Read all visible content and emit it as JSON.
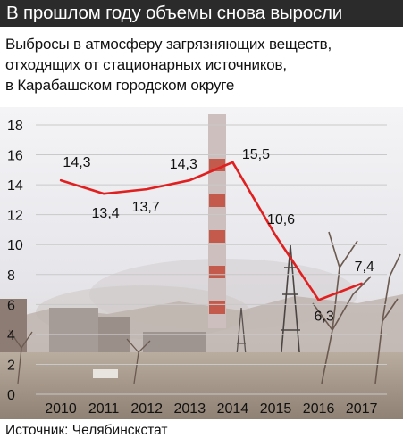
{
  "header": {
    "title": "В прошлом году объемы снова выросли",
    "subtitle_lines": [
      "Выбросы в атмосферу загрязняющих веществ,",
      "отходящих от стационарных источников,",
      "в Карабашском городском округе"
    ]
  },
  "footer": {
    "source": "Источник: Челябинскстат"
  },
  "colors": {
    "header_bg": "#2b2b2b",
    "line": "#e02020",
    "grid": "#c9c9c9"
  },
  "chart_data": {
    "type": "line",
    "title": "Выбросы в атмосферу загрязняющих веществ, отходящих от стационарных источников, в Карабашском городском округе",
    "categories": [
      "2010",
      "2011",
      "2012",
      "2013",
      "2014",
      "2015",
      "2016",
      "2017"
    ],
    "series": [
      {
        "values": [
          14.3,
          13.4,
          13.7,
          14.3,
          15.5,
          10.6,
          6.3,
          7.4
        ]
      }
    ],
    "data_labels": [
      "14,3",
      "13,4",
      "13,7",
      "14,3",
      "15,5",
      "10,6",
      "6,3",
      "7,4"
    ],
    "y_ticks": [
      "0",
      "2",
      "4",
      "6",
      "8",
      "10",
      "12",
      "14",
      "16",
      "18"
    ],
    "ylim": [
      0,
      18
    ],
    "xlabel": "",
    "ylabel": "",
    "grid": "horizontal",
    "legend": "none"
  }
}
